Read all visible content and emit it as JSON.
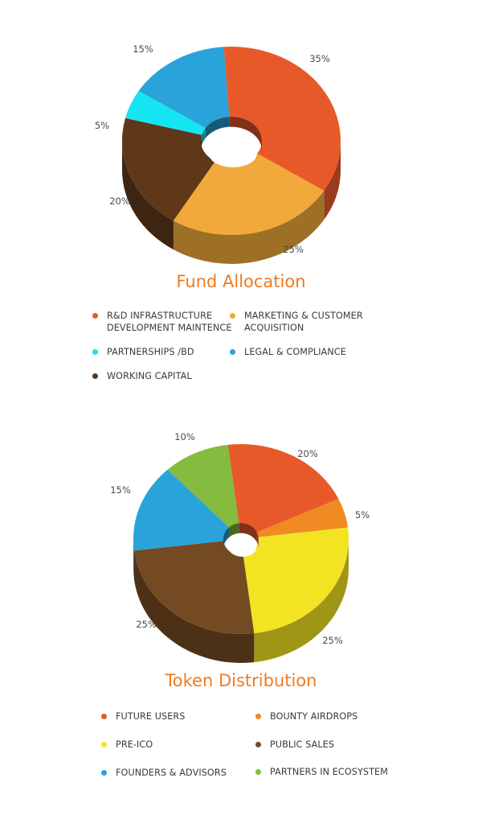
{
  "chart_data": [
    {
      "type": "pie",
      "title": "Fund Allocation",
      "slices": [
        {
          "label": "R&D INFRASTRUCTURE\nDEVELOPMENT MAINTENCE",
          "value": 35,
          "value_label": "35%",
          "color": "#e8592a"
        },
        {
          "label": "MARKETING & CUSTOMER\nACQUISITION",
          "value": 25,
          "value_label": "25%",
          "color": "#f0a93a"
        },
        {
          "label": "WORKING CAPITAL",
          "value": 20,
          "value_label": "20%",
          "color": "#5e3819"
        },
        {
          "label": "PARTNERSHIPS /BD",
          "value": 5,
          "value_label": "5%",
          "color": "#15e5f0"
        },
        {
          "label": "LEGAL & COMPLIANCE",
          "value": 15,
          "value_label": "15%",
          "color": "#29a3da"
        }
      ],
      "legend": [
        "R&D INFRASTRUCTURE\nDEVELOPMENT MAINTENCE",
        "MARKETING & CUSTOMER\nACQUISITION",
        "PARTNERSHIPS /BD",
        "LEGAL & COMPLIANCE",
        "WORKING CAPITAL"
      ],
      "legend_colors": [
        "#e8592a",
        "#f0a93a",
        "#15e5f0",
        "#29a3da",
        "#5e3819"
      ]
    },
    {
      "type": "pie",
      "title": "Token Distribution",
      "slices": [
        {
          "label": "FUTURE USERS",
          "value": 20,
          "value_label": "20%",
          "color": "#e8592a"
        },
        {
          "label": "BOUNTY AIRDROPS",
          "value": 5,
          "value_label": "5%",
          "color": "#ef8b22"
        },
        {
          "label": "PRE-ICO",
          "value": 25,
          "value_label": "25%",
          "color": "#f2e422"
        },
        {
          "label": "PUBLIC SALES",
          "value": 25,
          "value_label": "25%",
          "color": "#744a23"
        },
        {
          "label": "FOUNDERS & ADVISORS",
          "value": 15,
          "value_label": "15%",
          "color": "#29a3da"
        },
        {
          "label": "PARTNERS IN ECOSYSTEM",
          "value": 10,
          "value_label": "10%",
          "color": "#85bb3e"
        }
      ],
      "legend": [
        "FUTURE USERS",
        "BOUNTY AIRDROPS",
        "PRE-ICO",
        "PUBLIC SALES",
        "FOUNDERS & ADVISORS",
        "PARTNERS IN ECOSYSTEM"
      ],
      "legend_colors": [
        "#e8592a",
        "#ef8b22",
        "#f2e422",
        "#744a23",
        "#29a3da",
        "#85bb3e"
      ]
    }
  ]
}
